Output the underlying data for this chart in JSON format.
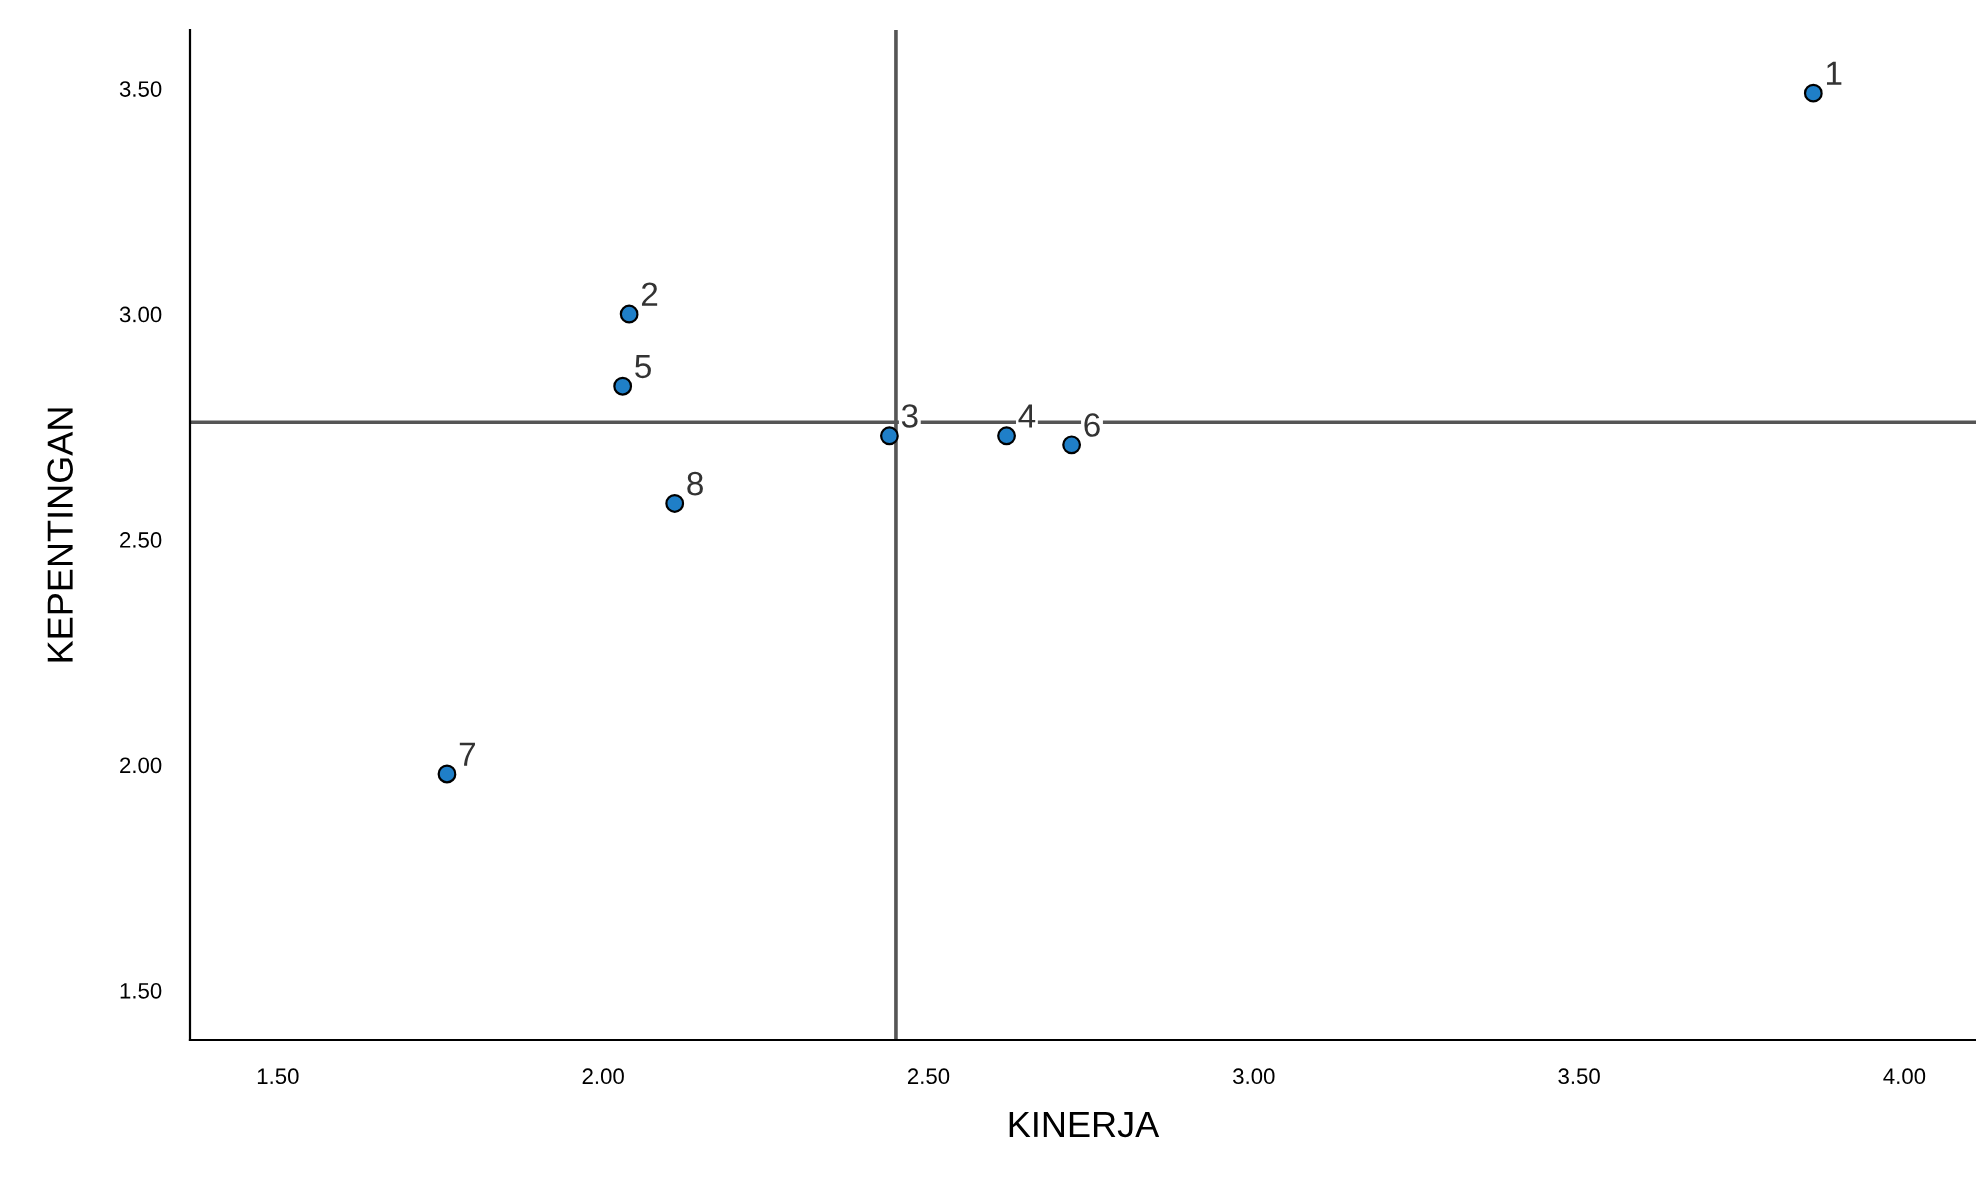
{
  "chart_data": {
    "type": "scatter",
    "xlabel": "KINERJA",
    "ylabel": "KEPENTINGAN",
    "x": [
      3.86,
      2.04,
      2.44,
      2.62,
      2.03,
      2.72,
      1.76,
      2.11
    ],
    "values": [
      3.49,
      3.0,
      2.73,
      2.73,
      2.84,
      2.71,
      1.98,
      2.58
    ],
    "color": "#1f7fc8",
    "marker": "circle",
    "grid": false,
    "legend": false,
    "xlim": [
      1.365,
      4.11
    ],
    "ylim": [
      1.39,
      3.63
    ],
    "xticks": [
      {
        "value": 1.5,
        "label": "1.50"
      },
      {
        "value": 2.0,
        "label": "2.00"
      },
      {
        "value": 2.5,
        "label": "2.50"
      },
      {
        "value": 3.0,
        "label": "3.00"
      },
      {
        "value": 3.5,
        "label": "3.50"
      },
      {
        "value": 4.0,
        "label": "4.00"
      }
    ],
    "yticks": [
      {
        "value": 1.5,
        "label": "1.50"
      },
      {
        "value": 2.0,
        "label": "2.00"
      },
      {
        "value": 2.5,
        "label": "2.50"
      },
      {
        "value": 3.0,
        "label": "3.00"
      },
      {
        "value": 3.5,
        "label": "3.50"
      }
    ],
    "ref_lines": [
      {
        "axis": "x",
        "value": 2.45,
        "color": "#555555"
      },
      {
        "axis": "y",
        "value": 2.76,
        "color": "#555555"
      }
    ],
    "annotations": [
      {
        "text": "1",
        "x": 3.86,
        "y": 3.49
      },
      {
        "text": "2",
        "x": 2.04,
        "y": 3.0
      },
      {
        "text": "3",
        "x": 2.44,
        "y": 2.73
      },
      {
        "text": "4",
        "x": 2.62,
        "y": 2.73
      },
      {
        "text": "5",
        "x": 2.03,
        "y": 2.84
      },
      {
        "text": "6",
        "x": 2.72,
        "y": 2.71
      },
      {
        "text": "7",
        "x": 1.76,
        "y": 1.98
      },
      {
        "text": "8",
        "x": 2.11,
        "y": 2.58
      }
    ]
  }
}
